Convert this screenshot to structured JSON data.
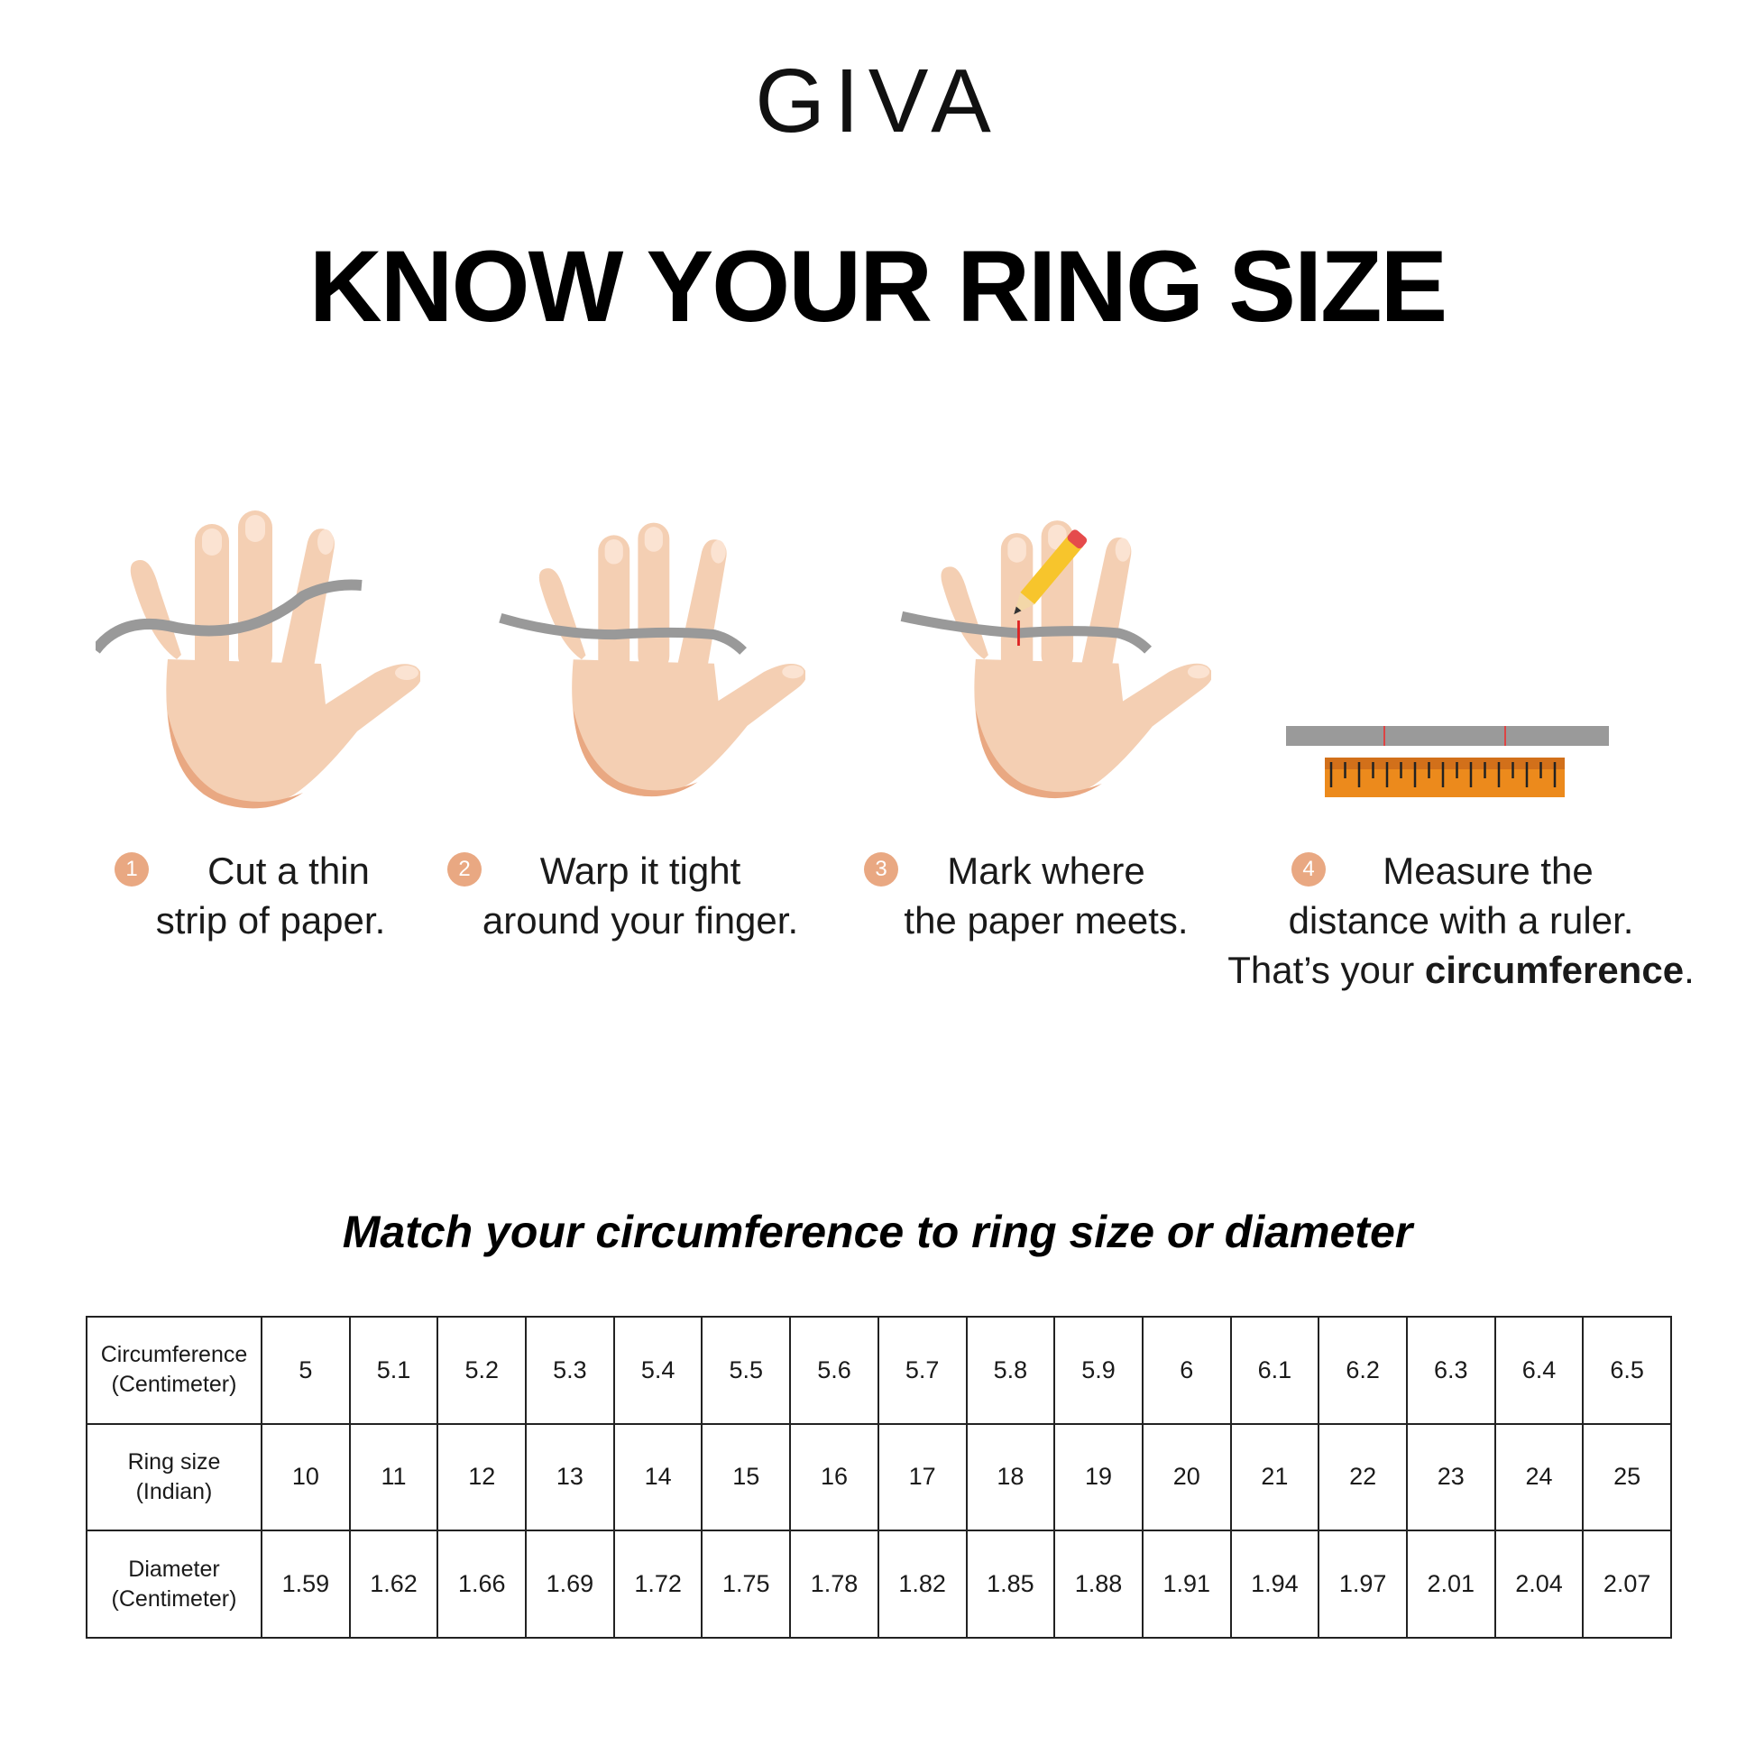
{
  "brand": "GIVA",
  "title": "KNOW YOUR RING SIZE",
  "steps": [
    {
      "number": "1",
      "lines": [
        "Cut a thin",
        "strip of paper."
      ]
    },
    {
      "number": "2",
      "lines": [
        "Warp it tight",
        "around your finger."
      ]
    },
    {
      "number": "3",
      "lines": [
        "Mark where",
        "the paper meets."
      ]
    },
    {
      "number": "4",
      "lines": [
        "Measure the",
        "distance with a ruler."
      ],
      "last_prefix": "That’s your ",
      "last_bold": "circumference",
      "last_suffix": "."
    }
  ],
  "subtitle": "Match your circumference to ring size or diameter",
  "table": {
    "rows": [
      {
        "header": [
          "Circumference",
          "(Centimeter)"
        ],
        "values": [
          "5",
          "5.1",
          "5.2",
          "5.3",
          "5.4",
          "5.5",
          "5.6",
          "5.7",
          "5.8",
          "5.9",
          "6",
          "6.1",
          "6.2",
          "6.3",
          "6.4",
          "6.5"
        ]
      },
      {
        "header": [
          "Ring size",
          "(Indian)"
        ],
        "values": [
          "10",
          "11",
          "12",
          "13",
          "14",
          "15",
          "16",
          "17",
          "18",
          "19",
          "20",
          "21",
          "22",
          "23",
          "24",
          "25"
        ]
      },
      {
        "header": [
          "Diameter",
          "(Centimeter)"
        ],
        "values": [
          "1.59",
          "1.62",
          "1.66",
          "1.69",
          "1.72",
          "1.75",
          "1.78",
          "1.82",
          "1.85",
          "1.88",
          "1.91",
          "1.94",
          "1.97",
          "2.01",
          "2.04",
          "2.07"
        ]
      }
    ]
  },
  "colors": {
    "skin": "#f4cfb3",
    "skin_shade": "#e9a882",
    "paper": "#9a9a9a",
    "ruler": "#ec8a1c",
    "step_badge": "#e9a882"
  }
}
